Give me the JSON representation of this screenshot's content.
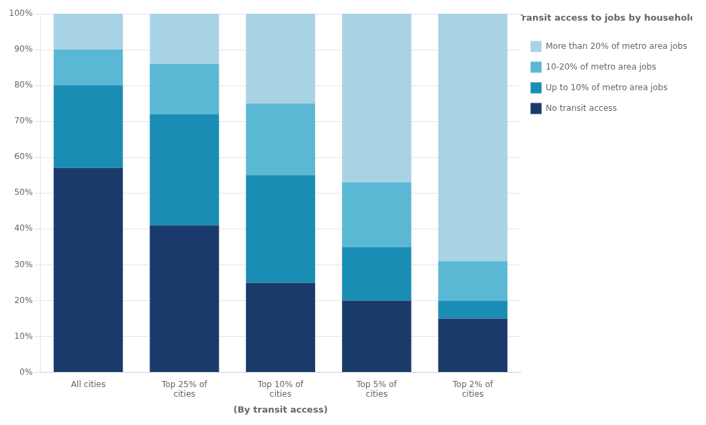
{
  "chart_data": {
    "type": "bar",
    "stacked": true,
    "categories": [
      "All cities",
      "Top 25% of\ncities",
      "Top 10% of\ncities",
      "Top 5% of\ncities",
      "Top 2% of\ncities"
    ],
    "series": [
      {
        "name": "No transit access",
        "color": "#1a3a6b",
        "values": [
          57,
          41,
          25,
          20,
          15
        ]
      },
      {
        "name": "Up to 10% of metro area jobs",
        "color": "#1a8db5",
        "values": [
          23,
          31,
          30,
          15,
          5
        ]
      },
      {
        "name": "10-20% of metro area jobs",
        "color": "#5ab8d4",
        "values": [
          10,
          14,
          20,
          18,
          11
        ]
      },
      {
        "name": "More than 20% of metro area jobs",
        "color": "#a8d3e4",
        "values": [
          10,
          14,
          25,
          47,
          69
        ]
      }
    ],
    "legend_title": "Transit access to jobs by household",
    "xlabel": "(By transit access)",
    "ylim": [
      0,
      100
    ],
    "yticks": [
      {
        "value": 0,
        "label": "0%"
      },
      {
        "value": 10,
        "label": "10%"
      },
      {
        "value": 20,
        "label": "20%"
      },
      {
        "value": 30,
        "label": "30%"
      },
      {
        "value": 40,
        "label": "40%"
      },
      {
        "value": 50,
        "label": "50%"
      },
      {
        "value": 60,
        "label": "60%"
      },
      {
        "value": 70,
        "label": "70%"
      },
      {
        "value": 80,
        "label": "80%"
      },
      {
        "value": 90,
        "label": "90%"
      },
      {
        "value": 100,
        "label": "100%"
      }
    ],
    "grid": true,
    "legend": "right"
  }
}
